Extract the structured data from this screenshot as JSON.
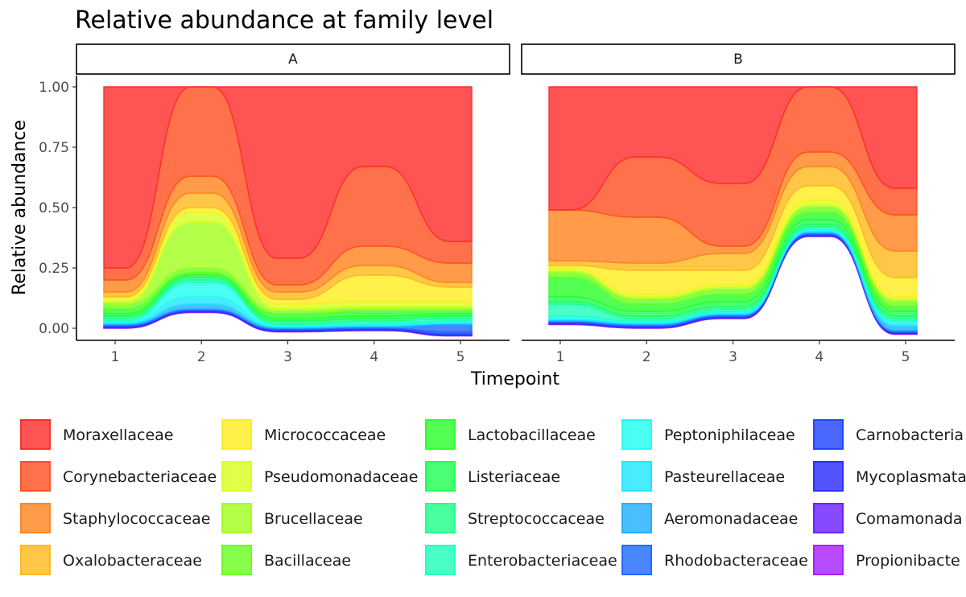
{
  "chart_data": {
    "type": "area",
    "subtype": "alluvial stacked area (facetted)",
    "title": "Relative abundance at family level",
    "xlabel": "Timepoint",
    "ylabel": "Relative abundance",
    "x": [
      1,
      2,
      3,
      4,
      5
    ],
    "x_tick_labels": [
      "1",
      "2",
      "3",
      "4",
      "5"
    ],
    "ylim": [
      0,
      1
    ],
    "y_ticks": [
      0,
      0.25,
      0.5,
      0.75,
      1.0
    ],
    "y_tick_labels": [
      "0.00",
      "0.25",
      "0.50",
      "0.75",
      "1.00"
    ],
    "grid": false,
    "legend_position": "bottom",
    "legend_columns": 5,
    "taxa": [
      {
        "name": "Moraxellaceae",
        "color": "#FF2E2E"
      },
      {
        "name": "Corynebacteriaceae",
        "color": "#FF5222"
      },
      {
        "name": "Staphylococcaceae",
        "color": "#FF8521"
      },
      {
        "name": "Oxalobacteraceae",
        "color": "#FFB91E"
      },
      {
        "name": "Micrococcaceae",
        "color": "#FFEE22"
      },
      {
        "name": "Pseudomonadaceae",
        "color": "#D9FF22"
      },
      {
        "name": "Brucellaceae",
        "color": "#A2FF22"
      },
      {
        "name": "Bacillaceae",
        "color": "#6BFF22"
      },
      {
        "name": "Lactobacillaceae",
        "color": "#2EFF2E"
      },
      {
        "name": "Listeriaceae",
        "color": "#22FF55"
      },
      {
        "name": "Streptococcaceae",
        "color": "#22FF88"
      },
      {
        "name": "Enterobacteriaceae",
        "color": "#22FFBB"
      },
      {
        "name": "Peptoniphilaceae",
        "color": "#22FFEE"
      },
      {
        "name": "Pasteurellaceae",
        "color": "#22E6FF"
      },
      {
        "name": "Aeromonadaceae",
        "color": "#22B0FF"
      },
      {
        "name": "Rhodobacteraceae",
        "color": "#226BFF"
      },
      {
        "name": "Carnobacteriaceae",
        "color": "#2245FF"
      },
      {
        "name": "Mycoplasmataceae",
        "color": "#2E2EFF"
      },
      {
        "name": "Comamonadaceae",
        "color": "#6B22FF"
      },
      {
        "name": "Propionibacteriaceae",
        "color": "#A822FF"
      }
    ],
    "legend_visible_labels": [
      "Moraxellaceae",
      "Corynebacteriaceae",
      "Staphylococcaceae",
      "Oxalobacteraceae",
      "Micrococcaceae",
      "Pseudomonadaceae",
      "Brucellaceae",
      "Bacillaceae",
      "Lactobacillaceae",
      "Listeriaceae",
      "Streptococcaceae",
      "Enterobacteriaceae",
      "Peptoniphilaceae",
      "Pasteurellaceae",
      "Aeromonadaceae",
      "Rhodobacteraceae",
      "Carnobacteria",
      "Mycoplasmata",
      "Comamonada",
      "Propionibacte"
    ],
    "facets": [
      {
        "label": "A",
        "series": [
          {
            "name": "Moraxellaceae",
            "values": [
              0.75,
              0.0,
              0.71,
              0.33,
              0.64
            ]
          },
          {
            "name": "Corynebacteriaceae",
            "values": [
              0.05,
              0.37,
              0.11,
              0.33,
              0.09
            ]
          },
          {
            "name": "Staphylococcaceae",
            "values": [
              0.05,
              0.07,
              0.03,
              0.08,
              0.08
            ]
          },
          {
            "name": "Oxalobacteraceae",
            "values": [
              0.02,
              0.06,
              0.03,
              0.04,
              0.02
            ]
          },
          {
            "name": "Micrococcaceae",
            "values": [
              0.01,
              0.02,
              0.02,
              0.11,
              0.06
            ]
          },
          {
            "name": "Pseudomonadaceae",
            "values": [
              0.01,
              0.04,
              0.02,
              0.02,
              0.02
            ]
          },
          {
            "name": "Brucellaceae",
            "values": [
              0.01,
              0.19,
              0.01,
              0.01,
              0.01
            ]
          },
          {
            "name": "Bacillaceae",
            "values": [
              0.02,
              0.02,
              0.01,
              0.01,
              0.01
            ]
          },
          {
            "name": "Lactobacillaceae",
            "values": [
              0.02,
              0.01,
              0.02,
              0.02,
              0.01
            ]
          },
          {
            "name": "Listeriaceae",
            "values": [
              0.01,
              0.01,
              0.01,
              0.01,
              0.01
            ]
          },
          {
            "name": "Streptococcaceae",
            "values": [
              0.01,
              0.01,
              0.01,
              0.01,
              0.01
            ]
          },
          {
            "name": "Enterobacteriaceae",
            "values": [
              0.01,
              0.01,
              0.005,
              0.01,
              0.01
            ]
          },
          {
            "name": "Peptoniphilaceae",
            "values": [
              0.005,
              0.06,
              0.005,
              0.005,
              0.005
            ]
          },
          {
            "name": "Pasteurellaceae",
            "values": [
              0.005,
              0.03,
              0.005,
              0.005,
              0.005
            ]
          },
          {
            "name": "Aeromonadaceae",
            "values": [
              0.005,
              0.02,
              0.005,
              0.005,
              0.005
            ]
          },
          {
            "name": "Rhodobacteraceae",
            "values": [
              0.005,
              0.005,
              0.005,
              0.005,
              0.03
            ]
          },
          {
            "name": "Carnobacteriaceae",
            "values": [
              0.003,
              0.003,
              0.003,
              0.003,
              0.01
            ]
          },
          {
            "name": "Mycoplasmataceae",
            "values": [
              0.003,
              0.003,
              0.003,
              0.003,
              0.003
            ]
          },
          {
            "name": "Comamonadaceae",
            "values": [
              0.002,
              0.002,
              0.002,
              0.002,
              0.002
            ]
          },
          {
            "name": "Propionibacteriaceae",
            "values": [
              0.002,
              0.002,
              0.002,
              0.002,
              0.002
            ]
          }
        ]
      },
      {
        "label": "B",
        "series": [
          {
            "name": "Moraxellaceae",
            "values": [
              0.51,
              0.29,
              0.4,
              0.0,
              0.42
            ]
          },
          {
            "name": "Corynebacteriaceae",
            "values": [
              0.0,
              0.25,
              0.26,
              0.27,
              0.11
            ]
          },
          {
            "name": "Staphylococcaceae",
            "values": [
              0.21,
              0.19,
              0.03,
              0.06,
              0.15
            ]
          },
          {
            "name": "Oxalobacteraceae",
            "values": [
              0.02,
              0.03,
              0.07,
              0.08,
              0.11
            ]
          },
          {
            "name": "Micrococcaceae",
            "values": [
              0.01,
              0.1,
              0.06,
              0.06,
              0.08
            ]
          },
          {
            "name": "Pseudomonadaceae",
            "values": [
              0.01,
              0.01,
              0.01,
              0.02,
              0.01
            ]
          },
          {
            "name": "Brucellaceae",
            "values": [
              0.01,
              0.01,
              0.01,
              0.01,
              0.01
            ]
          },
          {
            "name": "Bacillaceae",
            "values": [
              0.02,
              0.02,
              0.02,
              0.02,
              0.02
            ]
          },
          {
            "name": "Lactobacillaceae",
            "values": [
              0.08,
              0.03,
              0.03,
              0.03,
              0.02
            ]
          },
          {
            "name": "Listeriaceae",
            "values": [
              0.02,
              0.02,
              0.02,
              0.02,
              0.02
            ]
          },
          {
            "name": "Streptococcaceae",
            "values": [
              0.01,
              0.01,
              0.01,
              0.01,
              0.01
            ]
          },
          {
            "name": "Enterobacteriaceae",
            "values": [
              0.05,
              0.01,
              0.01,
              0.01,
              0.01
            ]
          },
          {
            "name": "Peptoniphilaceae",
            "values": [
              0.01,
              0.005,
              0.005,
              0.005,
              0.01
            ]
          },
          {
            "name": "Pasteurellaceae",
            "values": [
              0.005,
              0.005,
              0.005,
              0.005,
              0.01
            ]
          },
          {
            "name": "Aeromonadaceae",
            "values": [
              0.005,
              0.005,
              0.005,
              0.005,
              0.02
            ]
          },
          {
            "name": "Rhodobacteraceae",
            "values": [
              0.005,
              0.005,
              0.005,
              0.005,
              0.005
            ]
          },
          {
            "name": "Carnobacteriaceae",
            "values": [
              0.003,
              0.003,
              0.003,
              0.003,
              0.003
            ]
          },
          {
            "name": "Mycoplasmataceae",
            "values": [
              0.003,
              0.003,
              0.003,
              0.003,
              0.003
            ]
          },
          {
            "name": "Comamonadaceae",
            "values": [
              0.002,
              0.002,
              0.002,
              0.002,
              0.002
            ]
          },
          {
            "name": "Propionibacteriaceae",
            "values": [
              0.002,
              0.002,
              0.002,
              0.002,
              0.002
            ]
          }
        ]
      }
    ]
  }
}
